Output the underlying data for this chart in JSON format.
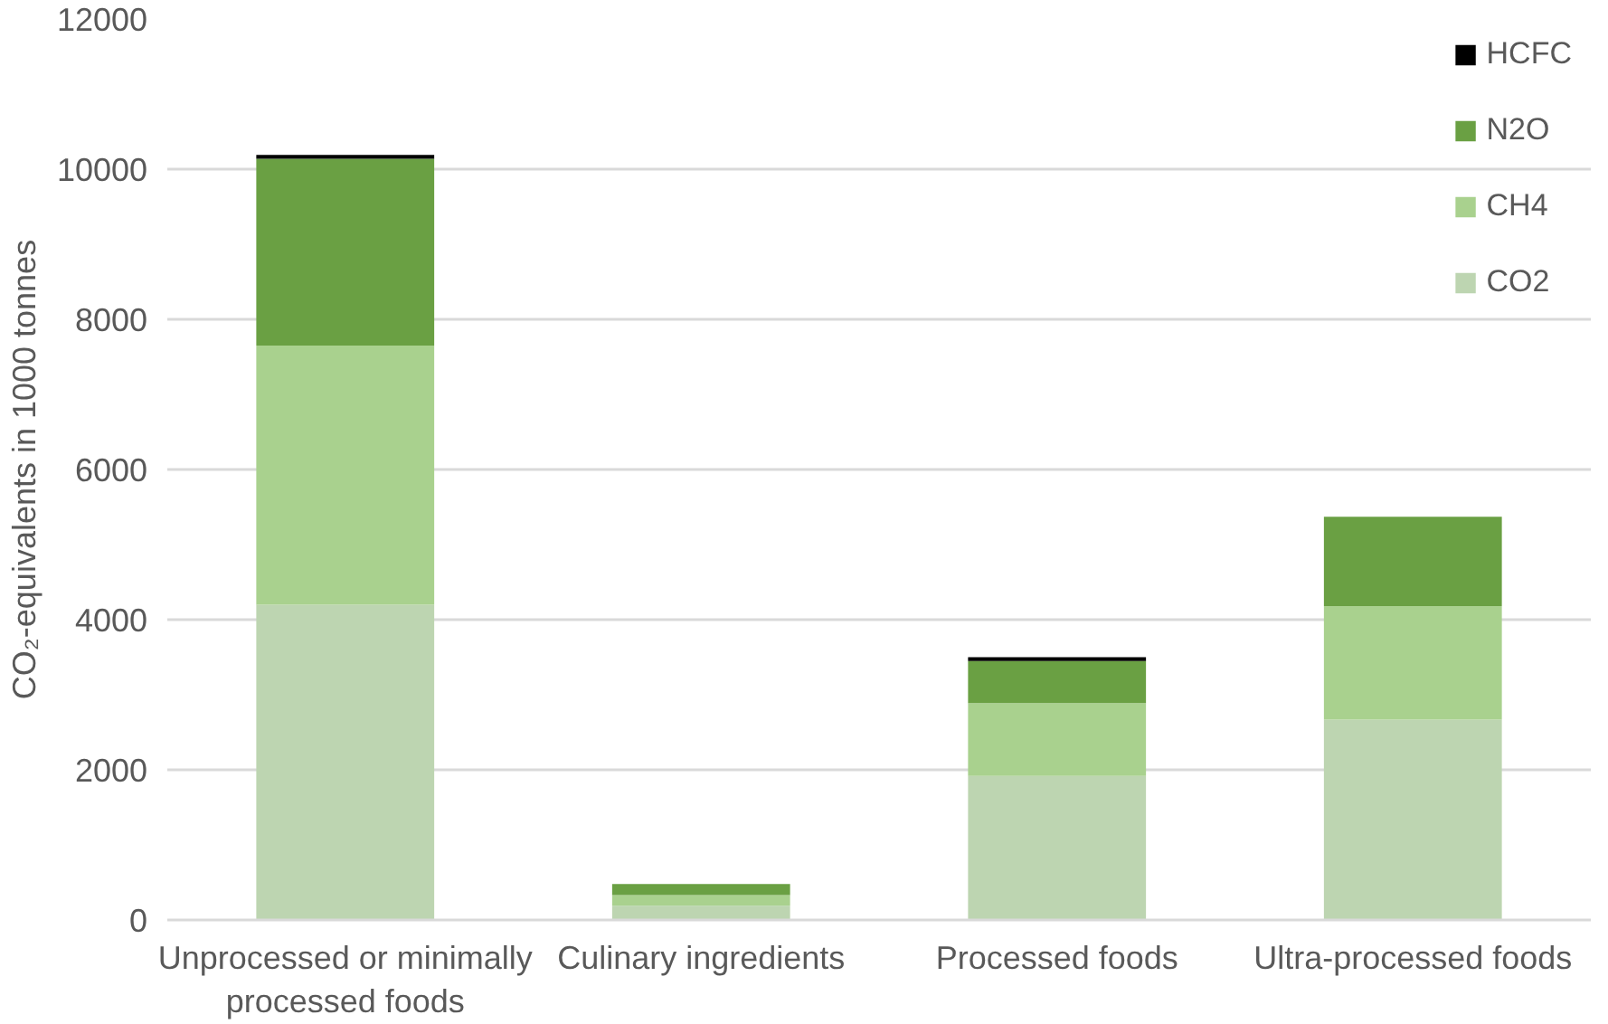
{
  "chart_data": {
    "type": "bar",
    "stacked": true,
    "ylabel": "CO₂-equivalents in 1000 tonnes",
    "categories": [
      "Unprocessed or minimally processed foods",
      "Culinary ingredients",
      "Processed foods",
      "Ultra-processed foods"
    ],
    "series": [
      {
        "name": "CO2",
        "color": "#bdd5b1",
        "values": [
          4200,
          190,
          1920,
          2670
        ]
      },
      {
        "name": "CH4",
        "color": "#a9d18e",
        "values": [
          3450,
          140,
          970,
          1510
        ]
      },
      {
        "name": "N2O",
        "color": "#6aa043",
        "values": [
          2490,
          150,
          560,
          1190
        ]
      },
      {
        "name": "HCFC",
        "color": "#000000",
        "values": [
          50,
          0,
          50,
          0
        ]
      }
    ],
    "ylim": [
      0,
      12000
    ],
    "yticks": [
      0,
      2000,
      4000,
      6000,
      8000,
      10000,
      12000
    ],
    "grid": "y",
    "legend": "top right"
  }
}
